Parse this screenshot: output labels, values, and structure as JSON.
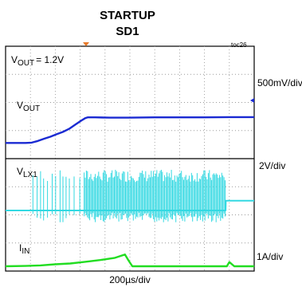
{
  "chart_data": {
    "type": "line",
    "title": "STARTUP",
    "subtitle": "SD1",
    "figure_ref": "toc26",
    "xlabel": "200µs/div",
    "vout_setpoint_label": "= 1.2V",
    "traces": [
      {
        "label_main": "V",
        "label_sub": "OUT",
        "label_suffix": "",
        "scale": "500mV/div",
        "color": "#1a2ad2",
        "x": [
          0,
          0.8,
          1.05,
          1.3,
          1.55,
          1.8,
          2.05,
          2.3,
          2.55,
          2.8,
          3.05,
          3.2,
          3.3,
          3.6,
          4.2,
          5.0,
          6.0,
          7.0,
          8.0,
          9.0,
          10.0
        ],
        "y": [
          -0.15,
          -0.15,
          -0.14,
          -0.08,
          0.0,
          0.07,
          0.16,
          0.24,
          0.35,
          0.5,
          0.65,
          0.73,
          0.76,
          0.76,
          0.75,
          0.75,
          0.76,
          0.76,
          0.76,
          0.77,
          0.77
        ]
      },
      {
        "label_main": "V",
        "label_sub": "LX1",
        "label_suffix": "",
        "scale": "2V/div",
        "color": "#33d9e2",
        "x": [
          0,
          1.1,
          1.6,
          2.1,
          3.1,
          8.85,
          8.86,
          10.0
        ],
        "y": [
          0,
          0,
          0,
          0,
          0,
          0,
          0.35,
          0.35
        ],
        "switching_region": [
          1.1,
          8.85
        ],
        "pulse_high": 1.45
      },
      {
        "label_main": "I",
        "label_sub": "IN",
        "label_suffix": "",
        "scale": "1A/div",
        "color": "#22dd22",
        "x": [
          0,
          0.8,
          1.4,
          2.0,
          2.6,
          3.2,
          3.8,
          4.4,
          4.8,
          4.95,
          5.1,
          6.0,
          7.0,
          8.0,
          8.9,
          9.0,
          9.2,
          10.0
        ],
        "y": [
          0,
          0.01,
          0.03,
          0.07,
          0.1,
          0.16,
          0.22,
          0.3,
          0.42,
          0.2,
          0.0,
          0.0,
          0.0,
          0.0,
          0.0,
          0.15,
          0.0,
          0.0
        ]
      }
    ],
    "grid": true,
    "x_divisions": 10,
    "y_divisions": 8
  }
}
